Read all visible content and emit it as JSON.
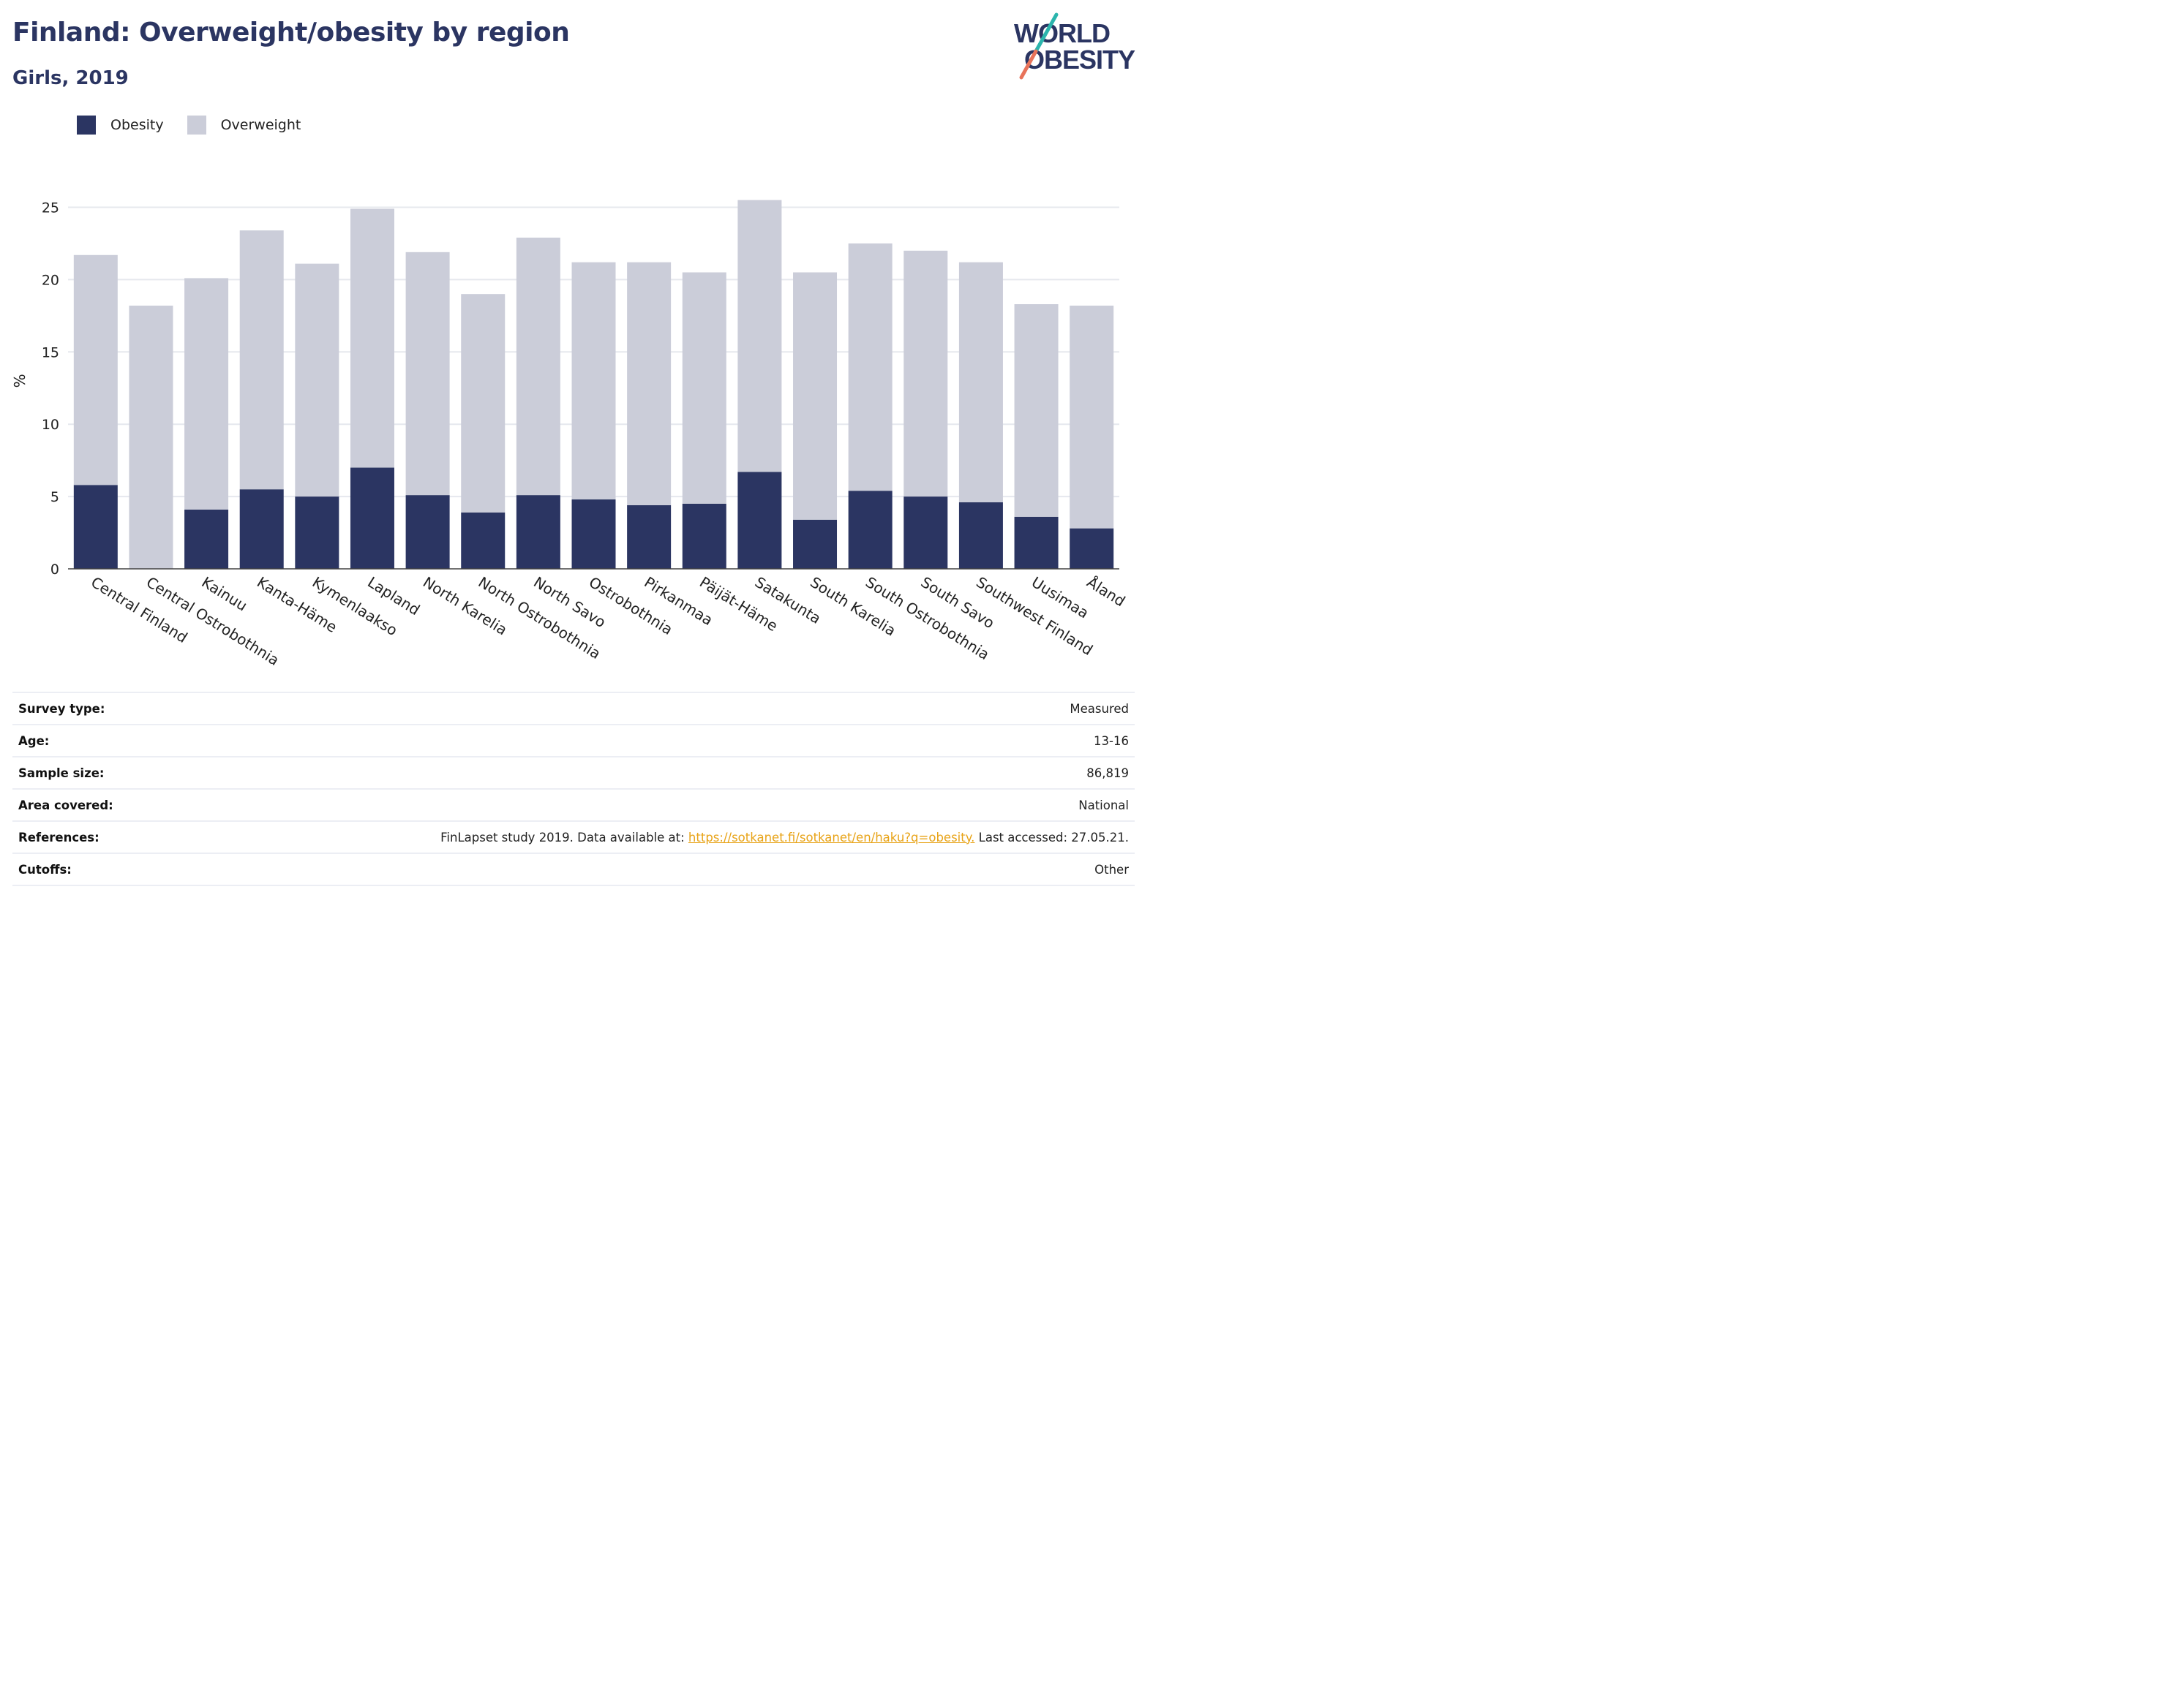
{
  "title": "Finland: Overweight/obesity by region",
  "subtitle": "Girls, 2019",
  "logo": {
    "line1": "WORLD",
    "line2": "OBESITY"
  },
  "colors": {
    "obesity": "#2b3562",
    "overweight": "#cbcdd9",
    "accent_teal": "#2bb5ad",
    "accent_coral": "#e8735a",
    "link": "#e8a317"
  },
  "legend": [
    {
      "label": "Obesity",
      "color": "#2b3562"
    },
    {
      "label": "Overweight",
      "color": "#cbcdd9"
    }
  ],
  "chart_data": {
    "type": "bar",
    "stacked": true,
    "categories": [
      "Central Finland",
      "Central Ostrobothnia",
      "Kainuu",
      "Kanta-Häme",
      "Kymenlaakso",
      "Lapland",
      "North Karelia",
      "North Ostrobothnia",
      "North Savo",
      "Ostrobothnia",
      "Pirkanmaa",
      "Päijät-Häme",
      "Satakunta",
      "South Karelia",
      "South Ostrobothnia",
      "South Savo",
      "Southwest Finland",
      "Uusimaa",
      "Åland"
    ],
    "series": [
      {
        "name": "Obesity",
        "values": [
          5.8,
          0,
          4.1,
          5.5,
          5.0,
          7.0,
          5.1,
          3.9,
          5.1,
          4.8,
          4.4,
          4.5,
          6.7,
          3.4,
          5.4,
          5.0,
          4.6,
          3.6,
          2.8
        ]
      },
      {
        "name": "Overweight",
        "values": [
          15.9,
          18.2,
          16.0,
          17.9,
          16.1,
          17.9,
          16.8,
          15.1,
          17.8,
          16.4,
          16.8,
          16.0,
          18.8,
          17.1,
          17.1,
          17.0,
          16.6,
          14.7,
          15.4
        ]
      }
    ],
    "ylabel": "%",
    "ylim": [
      0,
      27
    ],
    "yticks": [
      0,
      5,
      10,
      15,
      20,
      25
    ],
    "grid": true,
    "legend_position": "top-left"
  },
  "meta": [
    {
      "key": "Survey type:",
      "value": "Measured"
    },
    {
      "key": "Age:",
      "value": "13-16"
    },
    {
      "key": "Sample size:",
      "value": "86,819"
    },
    {
      "key": "Area covered:",
      "value": "National"
    },
    {
      "key": "Cutoffs:",
      "value": "Other"
    }
  ],
  "references": {
    "key": "References:",
    "prefix": "FinLapset study 2019. Data available at: ",
    "link": "https://sotkanet.fi/sotkanet/en/haku?q=obesity.",
    "suffix": " Last accessed: 27.05.21."
  }
}
